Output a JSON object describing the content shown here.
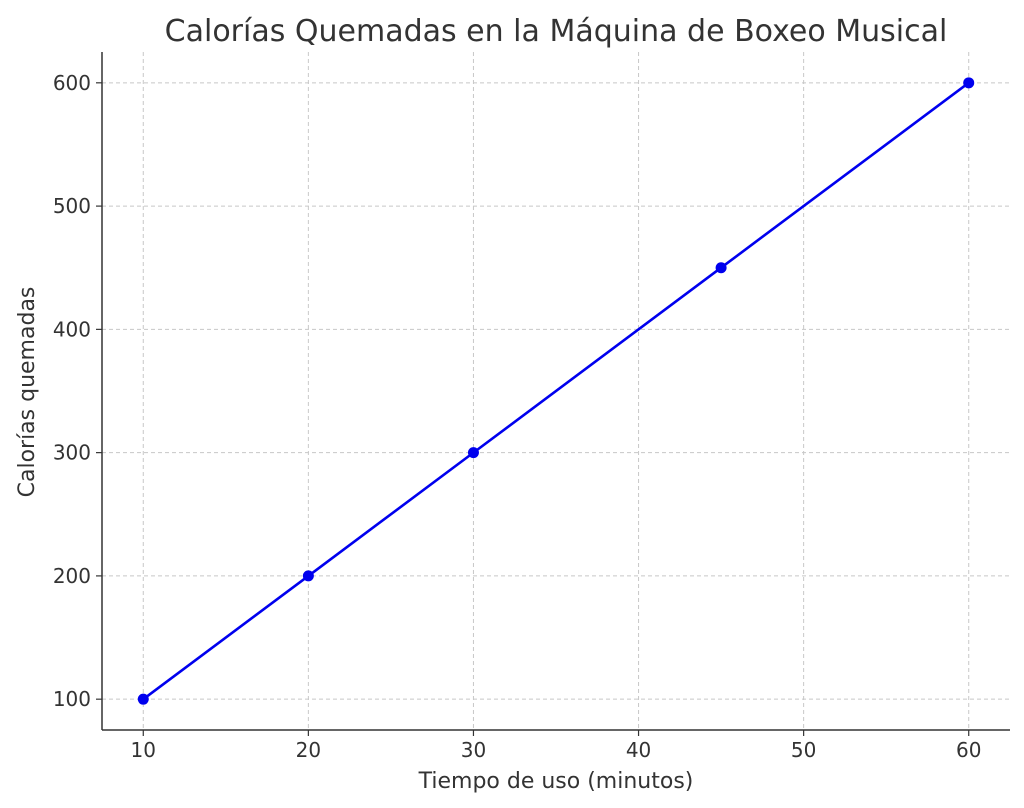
{
  "chart_data": {
    "type": "line",
    "title": "Calorías Quemadas en la Máquina de Boxeo Musical",
    "xlabel": "Tiempo de uso (minutos)",
    "ylabel": "Calorías quemadas",
    "x_ticks": [
      10,
      20,
      30,
      40,
      50,
      60
    ],
    "y_ticks": [
      100,
      200,
      300,
      400,
      500,
      600
    ],
    "xlim": [
      7.5,
      62.5
    ],
    "ylim": [
      75,
      625
    ],
    "grid": true,
    "series": [
      {
        "x": [
          10,
          20,
          30,
          45,
          60
        ],
        "y": [
          100,
          200,
          300,
          450,
          600
        ],
        "color": "#0000ee",
        "marker": "circle"
      }
    ]
  }
}
